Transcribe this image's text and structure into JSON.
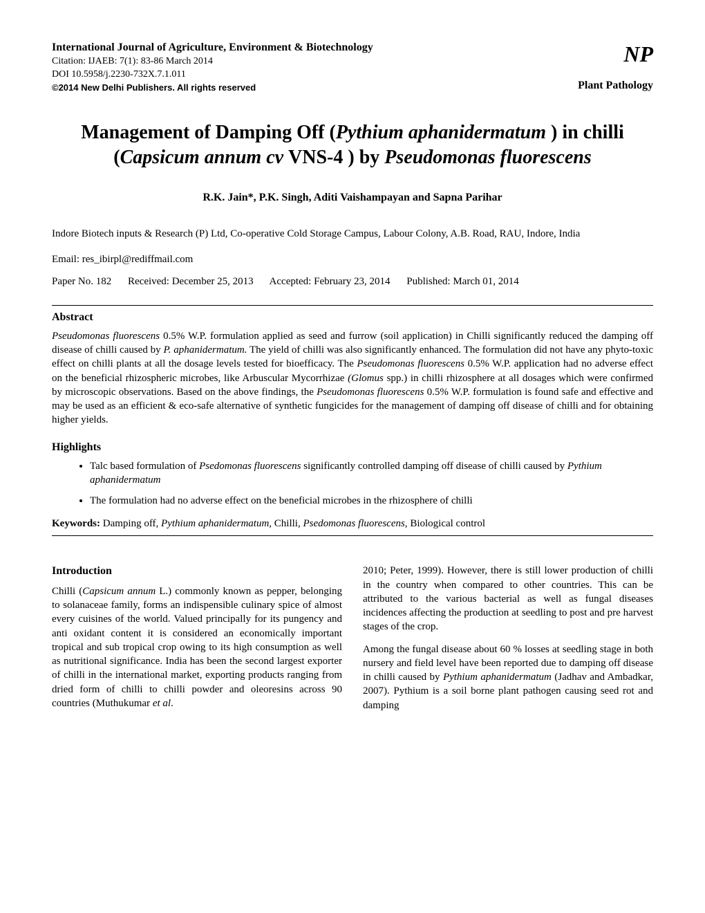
{
  "header": {
    "journal_name": "International Journal of Agriculture, Environment & Biotechnology",
    "citation": "Citation: IJAEB:  7(1):  83-86 March 2014",
    "doi": "DOI 10.5958/j.2230-732X.7.1.011",
    "copyright": "©2014 New Delhi Publishers. All rights reserved",
    "logo": "NP",
    "category": "Plant Pathology"
  },
  "title": {
    "part1": "Management of Damping Off (",
    "italic1": "Pythium aphanidermatum",
    "part2": " ) in chilli (",
    "italic2": "Capsicum annum cv ",
    "part3": "VNS-4 ) by ",
    "italic3": "Pseudomonas fluorescens"
  },
  "authors": "R.K. Jain*, P.K. Singh, Aditi Vaishampayan and Sapna Parihar",
  "affiliation": "Indore Biotech inputs & Research (P) Ltd, Co-operative Cold Storage Campus, Labour Colony, A.B. Road, RAU, Indore, India",
  "email": "Email: res_ibirpl@rediffmail.com",
  "paper_info": {
    "paper_no": "Paper No. 182",
    "received": "Received: December 25, 2013",
    "accepted": "Accepted: February 23, 2014",
    "published": "Published: March 01, 2014"
  },
  "abstract": {
    "heading": "Abstract",
    "text_part1": "Pseudomonas fluorescens",
    "text_part2": " 0.5% W.P. formulation applied as seed and furrow (soil application) in Chilli significantly reduced the damping off disease of chilli caused by ",
    "text_part3": "P. aphanidermatum.",
    "text_part4": " The yield of chilli was also significantly enhanced. The formulation did not have any phyto-toxic effect on chilli plants at all the dosage levels tested for bioefficacy. The ",
    "text_part5": "Pseudomonas fluorescens",
    "text_part6": " 0.5% W.P. application had no adverse effect on the beneficial rhizospheric microbes, like Arbuscular Mycorrhizae ",
    "text_part7": "(Glomus",
    "text_part8": " spp.) in chilli rhizosphere at all dosages which were confirmed by microscopic observations. Based on the above findings, the ",
    "text_part9": "Pseudomonas fluorescens",
    "text_part10": " 0.5% W.P. formulation is found safe and effective and may be used as an efficient & eco-safe alternative of synthetic fungicides for the management of damping off disease of chilli and for obtaining higher yields."
  },
  "highlights": {
    "heading": "Highlights",
    "items": [
      {
        "part1": "Talc based formulation of ",
        "italic1": "Psedomonas fluorescens",
        "part2": " significantly controlled damping off disease of chilli caused by ",
        "italic2": "Pythium aphanidermatum"
      },
      {
        "part1": "The formulation had no adverse effect on the beneficial microbes in the rhizosphere of chilli"
      }
    ]
  },
  "keywords": {
    "label": "Keywords:",
    "part1": " Damping off, ",
    "italic1": "Pythium aphanidermatum,",
    "part2": " Chilli, ",
    "italic2": "Psedomonas fluorescens,",
    "part3": " Biological control"
  },
  "introduction": {
    "heading": "Introduction",
    "col1_para1": {
      "part1": "Chilli (",
      "italic1": "Capsicum annum",
      "part2": " L.) commonly known as pepper, belonging to solanaceae family, forms an indispensible culinary spice of almost every cuisines of the world. Valued principally for its pungency and anti oxidant content it is considered an economically important tropical and sub tropical crop owing to its high consumption as well as nutritional significance. India has been the second largest exporter of chilli in the international market, exporting products ranging from dried form of chilli to chilli powder and oleoresins across 90 countries (Muthukumar ",
      "italic2": "et al",
      "part3": "."
    },
    "col2_para1": "2010; Peter, 1999). However, there is still lower production of chilli in the country when compared to other countries. This can be attributed to the various bacterial as well as fungal diseases incidences affecting the production at seedling to post and pre harvest stages of the crop.",
    "col2_para2": {
      "part1": "Among the fungal disease about 60 % losses at seedling stage in both nursery and field level have been reported due to damping off disease in chilli caused by ",
      "italic1": "Pythium aphanidermatum",
      "part2": " (Jadhav and Ambadkar, 2007). Pythium is a soil borne plant pathogen causing seed rot and damping"
    }
  }
}
